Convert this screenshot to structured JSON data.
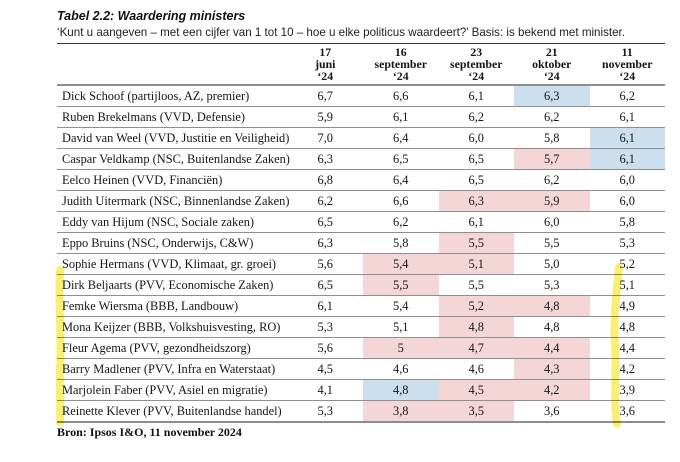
{
  "colors": {
    "highlight_blue": "#cbdfee",
    "highlight_pink": "#f5d6d7",
    "marker_yellow": "#f2e71f",
    "rule_dark": "#3a3a3a",
    "rule_gray": "#8d8d8d"
  },
  "chart_data": {
    "type": "table",
    "title": "Tabel 2.2: Waardering ministers",
    "subtitle": "‘Kunt u aangeven – met een cijfer van 1 tot 10 – hoe u elke politicus waardeert?’ Basis: is bekend met minister.",
    "source": "Bron: Ipsos I&O, 11 november 2024",
    "columns": [
      "17\njuni\n‘24",
      "16\nseptember\n‘24",
      "23\nseptember\n‘24",
      "21\noktober\n‘24",
      "11\nnovember\n‘24"
    ],
    "rows": [
      {
        "name": "Dick Schoof (partijloos, AZ, premier)",
        "values": [
          "6,7",
          "6,6",
          "6,1",
          "6,3",
          "6,2"
        ],
        "highlights": [
          "",
          "",
          "",
          "blue",
          ""
        ]
      },
      {
        "name": "Ruben Brekelmans (VVD, Defensie)",
        "values": [
          "5,9",
          "6,1",
          "6,2",
          "6,2",
          "6,1"
        ],
        "highlights": [
          "",
          "",
          "",
          "",
          ""
        ]
      },
      {
        "name": "David van Weel (VVD, Justitie en Veiligheid)",
        "values": [
          "7,0",
          "6,4",
          "6,0",
          "5,8",
          "6,1"
        ],
        "highlights": [
          "",
          "",
          "",
          "",
          "blue"
        ]
      },
      {
        "name": "Caspar Veldkamp (NSC, Buitenlandse Zaken)",
        "values": [
          "6,3",
          "6,5",
          "6,5",
          "5,7",
          "6,1"
        ],
        "highlights": [
          "",
          "",
          "",
          "pink",
          "blue"
        ]
      },
      {
        "name": "Eelco Heinen (VVD, Financiën)",
        "values": [
          "6,8",
          "6,4",
          "6,5",
          "6,2",
          "6,0"
        ],
        "highlights": [
          "",
          "",
          "",
          "",
          ""
        ]
      },
      {
        "name": "Judith Uitermark (NSC, Binnenlandse Zaken)",
        "values": [
          "6,2",
          "6,6",
          "6,3",
          "5,9",
          "6,0"
        ],
        "highlights": [
          "",
          "",
          "pink",
          "pink",
          ""
        ]
      },
      {
        "name": "Eddy van Hijum (NSC, Sociale zaken)",
        "values": [
          "6,5",
          "6,2",
          "6,1",
          "6,0",
          "5,8"
        ],
        "highlights": [
          "",
          "",
          "",
          "",
          ""
        ]
      },
      {
        "name": "Eppo Bruins (NSC, Onderwijs, C&W)",
        "values": [
          "6,3",
          "5,8",
          "5,5",
          "5,5",
          "5,3"
        ],
        "highlights": [
          "",
          "",
          "pink",
          "",
          ""
        ]
      },
      {
        "name": "Sophie Hermans (VVD, Klimaat, gr. groei)",
        "values": [
          "5,6",
          "5,4",
          "5,1",
          "5,0",
          "5,2"
        ],
        "highlights": [
          "",
          "pink",
          "pink",
          "",
          ""
        ]
      },
      {
        "name": "Dirk Beljaarts (PVV, Economische Zaken)",
        "values": [
          "6,5",
          "5,5",
          "5,5",
          "5,3",
          "5,1"
        ],
        "highlights": [
          "",
          "pink",
          "",
          "",
          ""
        ]
      },
      {
        "name": "Femke Wiersma (BBB, Landbouw)",
        "values": [
          "6,1",
          "5,4",
          "5,2",
          "4,8",
          "4,9"
        ],
        "highlights": [
          "",
          "",
          "pink",
          "pink",
          ""
        ]
      },
      {
        "name": "Mona Keijzer (BBB, Volkshuisvesting, RO)",
        "values": [
          "5,3",
          "5,1",
          "4,8",
          "4,8",
          "4,8"
        ],
        "highlights": [
          "",
          "",
          "pink",
          "",
          ""
        ]
      },
      {
        "name": "Fleur Agema (PVV, gezondheidszorg)",
        "values": [
          "5,6",
          "5",
          "4,7",
          "4,4",
          "4,4"
        ],
        "highlights": [
          "",
          "pink",
          "pink",
          "pink",
          ""
        ]
      },
      {
        "name": "Barry Madlener (PVV, Infra en Waterstaat)",
        "values": [
          "4,5",
          "4,6",
          "4,6",
          "4,3",
          "4,2"
        ],
        "highlights": [
          "",
          "",
          "",
          "pink",
          ""
        ]
      },
      {
        "name": "Marjolein Faber (PVV, Asiel en migratie)",
        "values": [
          "4,1",
          "4,8",
          "4,5",
          "4,2",
          "3,9"
        ],
        "highlights": [
          "",
          "blue",
          "pink",
          "pink",
          ""
        ]
      },
      {
        "name": "Reinette Klever (PVV, Buitenlandse handel)",
        "values": [
          "5,3",
          "3,8",
          "3,5",
          "3,6",
          "3,6"
        ],
        "highlights": [
          "",
          "pink",
          "pink",
          "",
          ""
        ]
      }
    ],
    "annotations": {
      "yellow_marker_left": "vertical highlighter stroke over minister-name column, rows Dirk Beljaarts through Reinette Klever",
      "yellow_marker_right": "vertical highlighter stroke over 11 november ‘24 column, rows Dirk Beljaarts through Reinette Klever"
    }
  }
}
